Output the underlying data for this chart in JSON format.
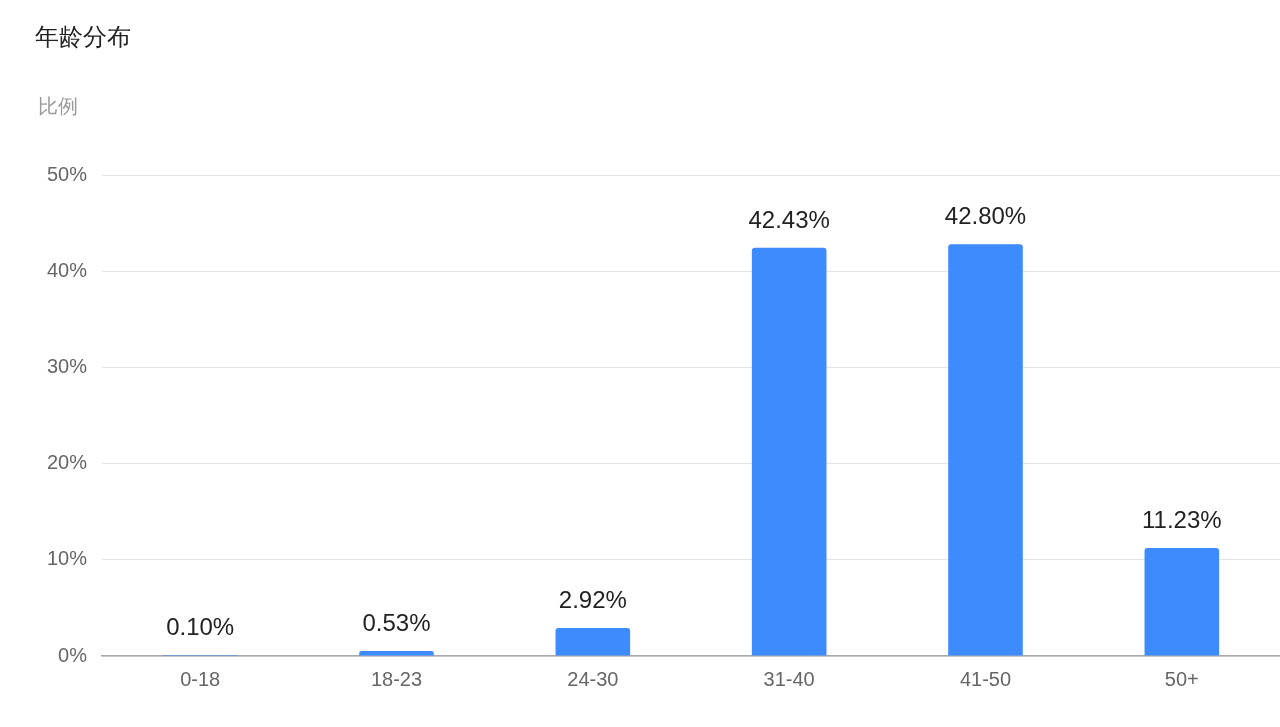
{
  "chart_data": {
    "type": "bar",
    "title": "年龄分布",
    "ylabel": "比例",
    "categories": [
      "0-18",
      "18-23",
      "24-30",
      "31-40",
      "41-50",
      "50+"
    ],
    "values": [
      0.1,
      0.53,
      2.92,
      42.43,
      42.8,
      11.23
    ],
    "color": "#3d8bfd",
    "value_labels": [
      "0.10%",
      "0.53%",
      "2.92%",
      "42.43%",
      "42.80%",
      "11.23%"
    ],
    "ylim": [
      0,
      50
    ],
    "yticks": [
      {
        "value": 0,
        "label": "0%"
      },
      {
        "value": 10,
        "label": "10%"
      },
      {
        "value": 20,
        "label": "20%"
      },
      {
        "value": 30,
        "label": "30%"
      },
      {
        "value": 40,
        "label": "40%"
      },
      {
        "value": 50,
        "label": "50%"
      }
    ],
    "grid": "y"
  }
}
